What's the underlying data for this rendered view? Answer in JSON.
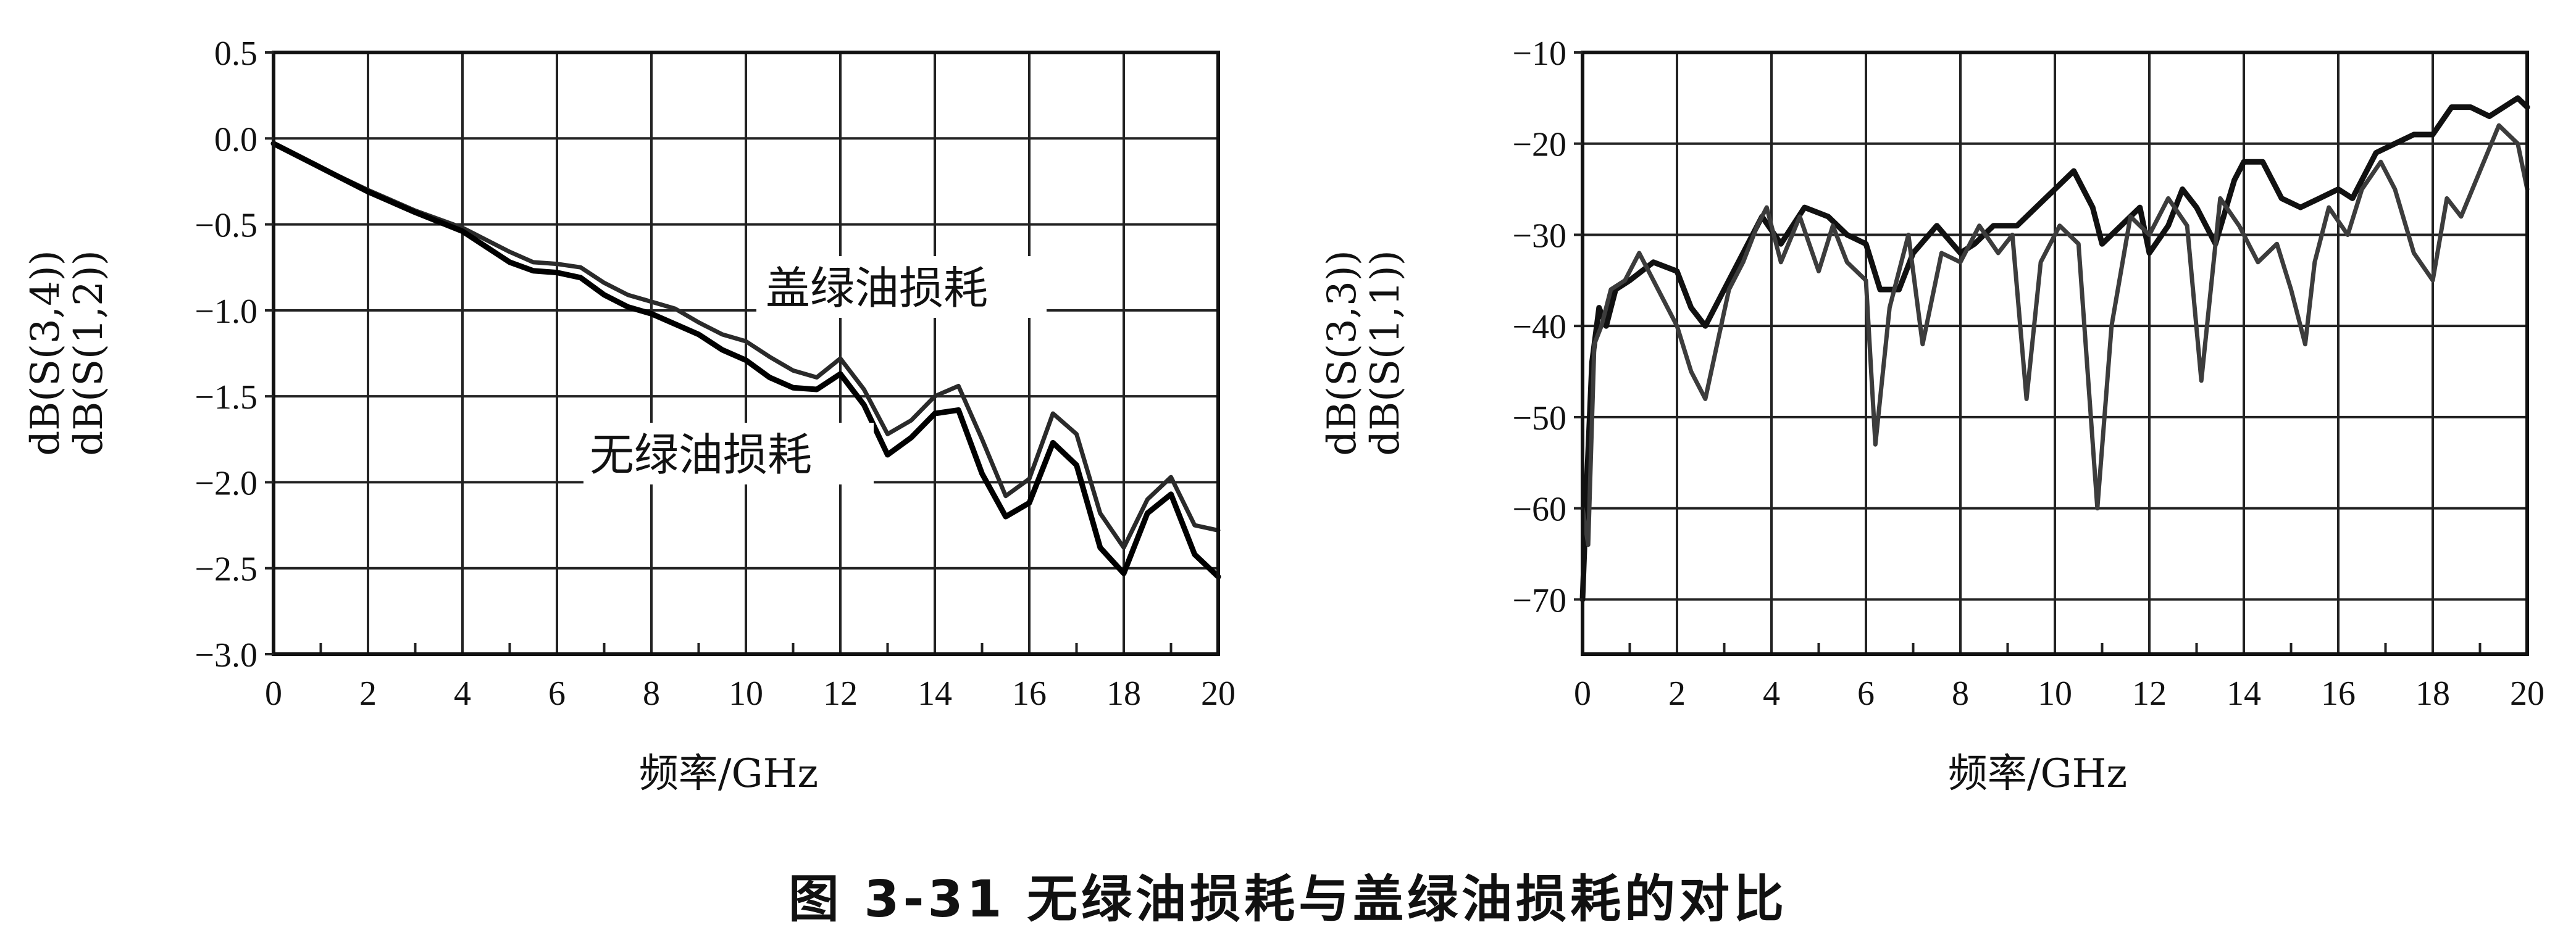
{
  "figure_caption": "图 3-31   无绿油损耗与盖绿油损耗的对比",
  "chart_data": [
    {
      "type": "line",
      "title": "",
      "xlabel": "频率/GHz",
      "ylabel": [
        "dB(S(3,4))",
        "dB(S(1,2))"
      ],
      "xlim": [
        0,
        20
      ],
      "ylim": [
        -3.0,
        0.5
      ],
      "x_ticks": [
        "0",
        "2",
        "4",
        "6",
        "8",
        "10",
        "12",
        "14",
        "16",
        "18",
        "20"
      ],
      "y_ticks": [
        "0.5",
        "0.0",
        "−0.5",
        "−1.0",
        "−1.5",
        "−2.0",
        "−2.5",
        "−3.0"
      ],
      "grid": true,
      "annotations": [
        "盖绿油损耗",
        "无绿油损耗"
      ],
      "series": [
        {
          "color": "#2a2a2a",
          "x": [
            0,
            1,
            2,
            3,
            4,
            5,
            5.5,
            6,
            6.5,
            7,
            7.5,
            8,
            8.5,
            9,
            9.5,
            10,
            10.5,
            11,
            11.5,
            12,
            12.5,
            13,
            13.5,
            14,
            14.5,
            15,
            15.5,
            16,
            16.5,
            17,
            17.5,
            18,
            18.5,
            19,
            19.5,
            20
          ],
          "y": [
            -0.03,
            -0.17,
            -0.3,
            -0.42,
            -0.52,
            -0.66,
            -0.72,
            -0.73,
            -0.75,
            -0.84,
            -0.91,
            -0.95,
            -0.99,
            -1.07,
            -1.14,
            -1.18,
            -1.27,
            -1.35,
            -1.39,
            -1.28,
            -1.46,
            -1.72,
            -1.64,
            -1.5,
            -1.44,
            -1.75,
            -2.08,
            -1.98,
            -1.6,
            -1.72,
            -2.18,
            -2.38,
            -2.1,
            -1.97,
            -2.25,
            -2.28
          ]
        },
        {
          "color": "#000000",
          "x": [
            0,
            1,
            2,
            3,
            4,
            5,
            5.5,
            6,
            6.5,
            7,
            7.5,
            8,
            8.5,
            9,
            9.5,
            10,
            10.5,
            11,
            11.5,
            12,
            12.5,
            13,
            13.5,
            14,
            14.5,
            15,
            15.5,
            16,
            16.5,
            17,
            17.5,
            18,
            18.5,
            19,
            19.5,
            20
          ],
          "y": [
            -0.03,
            -0.17,
            -0.31,
            -0.43,
            -0.54,
            -0.72,
            -0.77,
            -0.78,
            -0.81,
            -0.91,
            -0.98,
            -1.02,
            -1.08,
            -1.14,
            -1.23,
            -1.29,
            -1.39,
            -1.45,
            -1.46,
            -1.37,
            -1.55,
            -1.84,
            -1.74,
            -1.6,
            -1.58,
            -1.95,
            -2.2,
            -2.12,
            -1.77,
            -1.9,
            -2.38,
            -2.53,
            -2.18,
            -2.07,
            -2.42,
            -2.55
          ]
        }
      ]
    },
    {
      "type": "line",
      "title": "",
      "xlabel": "频率/GHz",
      "ylabel": [
        "dB(S(3,3))",
        "dB(S(1,1))"
      ],
      "xlim": [
        0,
        20
      ],
      "ylim": [
        -76,
        -10
      ],
      "x_ticks": [
        "0",
        "2",
        "4",
        "6",
        "8",
        "10",
        "12",
        "14",
        "16",
        "18",
        "20"
      ],
      "y_ticks": [
        "−10",
        "−20",
        "−30",
        "−40",
        "−50",
        "−60",
        "−70"
      ],
      "grid": true,
      "series": [
        {
          "color": "#111111",
          "x": [
            0,
            0.1,
            0.2,
            0.35,
            0.5,
            0.7,
            1,
            1.5,
            2,
            2.3,
            2.6,
            3,
            3.5,
            3.8,
            4.2,
            4.7,
            5.2,
            5.6,
            6,
            6.3,
            6.7,
            7,
            7.5,
            8,
            8.3,
            8.7,
            9.2,
            9.6,
            10,
            10.4,
            10.8,
            11,
            11.4,
            11.8,
            12,
            12.4,
            12.7,
            13,
            13.4,
            13.8,
            14,
            14.4,
            14.8,
            15.2,
            15.6,
            16,
            16.3,
            16.8,
            17.2,
            17.6,
            18,
            18.4,
            18.8,
            19.2,
            19.5,
            19.8,
            20
          ],
          "y": [
            -70,
            -56,
            -44,
            -38,
            -40,
            -36,
            -35,
            -33,
            -34,
            -38,
            -40,
            -36,
            -31,
            -28,
            -31,
            -27,
            -28,
            -30,
            -31,
            -36,
            -36,
            -32,
            -29,
            -32,
            -31,
            -29,
            -29,
            -27,
            -25,
            -23,
            -27,
            -31,
            -29,
            -27,
            -32,
            -29,
            -25,
            -27,
            -31,
            -24,
            -22,
            -22,
            -26,
            -27,
            -26,
            -25,
            -26,
            -21,
            -20,
            -19,
            -19,
            -16,
            -16,
            -17,
            -16,
            -15,
            -16
          ]
        },
        {
          "color": "#3c3c3c",
          "x": [
            0,
            0.12,
            0.25,
            0.4,
            0.6,
            0.9,
            1.2,
            1.6,
            2,
            2.3,
            2.6,
            2.85,
            3.1,
            3.4,
            3.7,
            3.9,
            4.2,
            4.6,
            5,
            5.3,
            5.6,
            6,
            6.2,
            6.5,
            6.9,
            7.2,
            7.6,
            8,
            8.4,
            8.8,
            9.1,
            9.4,
            9.7,
            10.1,
            10.5,
            10.9,
            11.2,
            11.6,
            12,
            12.4,
            12.8,
            13.1,
            13.5,
            13.9,
            14.3,
            14.7,
            15,
            15.3,
            15.5,
            15.8,
            16.2,
            16.5,
            16.9,
            17.2,
            17.6,
            18,
            18.3,
            18.6,
            19,
            19.4,
            19.8,
            20
          ],
          "y": [
            -60,
            -64,
            -42,
            -40,
            -36,
            -35,
            -32,
            -36,
            -40,
            -45,
            -48,
            -42,
            -36,
            -33,
            -29,
            -27,
            -33,
            -28,
            -34,
            -29,
            -33,
            -35,
            -53,
            -38,
            -30,
            -42,
            -32,
            -33,
            -29,
            -32,
            -30,
            -48,
            -33,
            -29,
            -31,
            -60,
            -40,
            -28,
            -30,
            -26,
            -29,
            -46,
            -26,
            -29,
            -33,
            -31,
            -36,
            -42,
            -33,
            -27,
            -30,
            -25,
            -22,
            -25,
            -32,
            -35,
            -26,
            -28,
            -23,
            -18,
            -20,
            -25
          ]
        }
      ]
    }
  ]
}
